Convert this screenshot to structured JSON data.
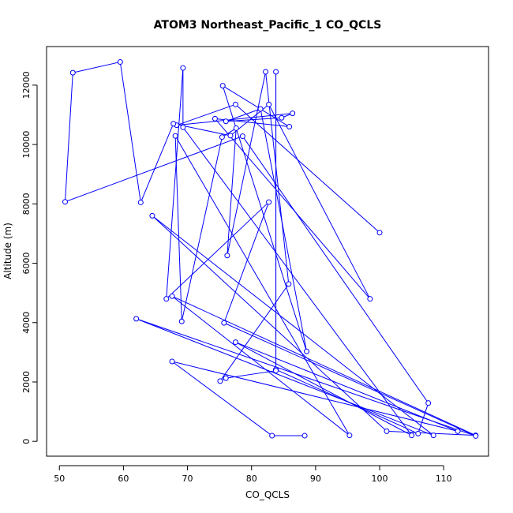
{
  "chart_data": {
    "type": "scatter",
    "title": "ATOM3 Northeast_Pacific_1 CO_QCLS",
    "xlabel": "CO_QCLS",
    "ylabel": "Altitude (m)",
    "xlim": [
      48,
      117
    ],
    "ylim": [
      -500,
      13300
    ],
    "xticks": [
      "50",
      "60",
      "70",
      "80",
      "90",
      "100",
      "110"
    ],
    "yticks": [
      "0",
      "2000",
      "4000",
      "6000",
      "8000",
      "10000",
      "12000"
    ],
    "series_color": "#0000ff",
    "connected": true,
    "series": [
      {
        "points": [
          [
            100.0,
            7030
          ],
          [
            77.5,
            11350
          ],
          [
            68.3,
            10650
          ],
          [
            86.4,
            11050
          ],
          [
            84.7,
            10900
          ],
          [
            76.0,
            10780
          ],
          [
            81.4,
            11200
          ],
          [
            88.6,
            3030
          ],
          [
            75.5,
            11980
          ],
          [
            85.9,
            10600
          ],
          [
            74.3,
            10870
          ],
          [
            98.5,
            4800
          ],
          [
            82.7,
            11350
          ],
          [
            76.7,
            10300
          ],
          [
            67.8,
            10700
          ],
          [
            62.7,
            8050
          ],
          [
            59.5,
            12780
          ],
          [
            52.1,
            12420
          ],
          [
            50.9,
            8070
          ],
          [
            78.6,
            10280
          ],
          [
            107.6,
            1290
          ],
          [
            106.0,
            260
          ],
          [
            83.8,
            2420
          ],
          [
            83.8,
            12450
          ],
          [
            83.8,
            2380
          ],
          [
            76.0,
            2130
          ],
          [
            75.1,
            2030
          ],
          [
            85.8,
            5300
          ],
          [
            82.2,
            12450
          ],
          [
            76.2,
            6260
          ],
          [
            77.6,
            10550
          ],
          [
            75.4,
            10250
          ],
          [
            69.1,
            4040
          ],
          [
            68.1,
            10290
          ],
          [
            95.3,
            200
          ],
          [
            67.6,
            4890
          ],
          [
            115.0,
            200
          ],
          [
            101.1,
            340
          ],
          [
            64.5,
            7600
          ],
          [
            108.4,
            200
          ],
          [
            62.0,
            4130
          ],
          [
            115.0,
            180
          ],
          [
            75.7,
            3990
          ],
          [
            82.7,
            8060
          ],
          [
            66.7,
            4800
          ],
          [
            69.3,
            12580
          ],
          [
            69.3,
            10580
          ],
          [
            105.0,
            200
          ],
          [
            77.5,
            3340
          ],
          [
            112.2,
            340
          ],
          [
            67.6,
            2690
          ],
          [
            83.2,
            190
          ],
          [
            88.3,
            190
          ]
        ]
      }
    ]
  }
}
